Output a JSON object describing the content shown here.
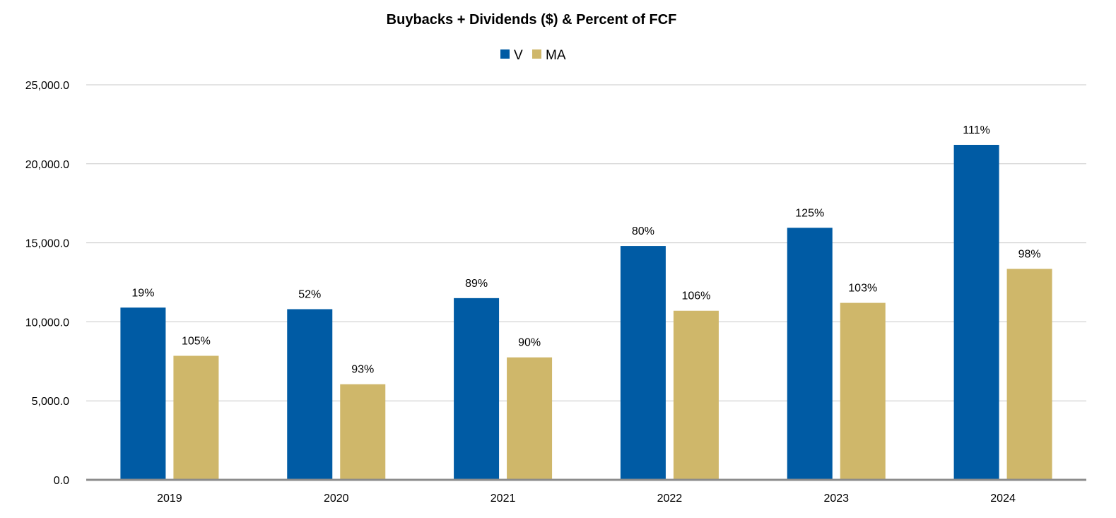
{
  "chart_data": {
    "type": "bar",
    "title": "Buybacks + Dividends ($) & Percent of FCF",
    "xlabel": "",
    "ylabel": "",
    "categories": [
      "2019",
      "2020",
      "2021",
      "2022",
      "2023",
      "2024"
    ],
    "series": [
      {
        "name": "V",
        "color": "#005ba4",
        "values": [
          10900,
          10800,
          11500,
          14800,
          15950,
          21200
        ],
        "labels": [
          "19%",
          "52%",
          "89%",
          "80%",
          "125%",
          "111%"
        ]
      },
      {
        "name": "MA",
        "color": "#cfb76a",
        "values": [
          7850,
          6050,
          7750,
          10700,
          11200,
          13350
        ],
        "labels": [
          "105%",
          "93%",
          "90%",
          "106%",
          "103%",
          "98%"
        ]
      }
    ],
    "ylim": [
      0,
      25000
    ],
    "yticks": [
      0,
      5000,
      10000,
      15000,
      20000,
      25000
    ],
    "ytick_labels": [
      "0.0",
      "5,000.0",
      "10,000.0",
      "15,000.0",
      "20,000.0",
      "25,000.0"
    ],
    "grid": true,
    "legend_position": "top-center"
  }
}
